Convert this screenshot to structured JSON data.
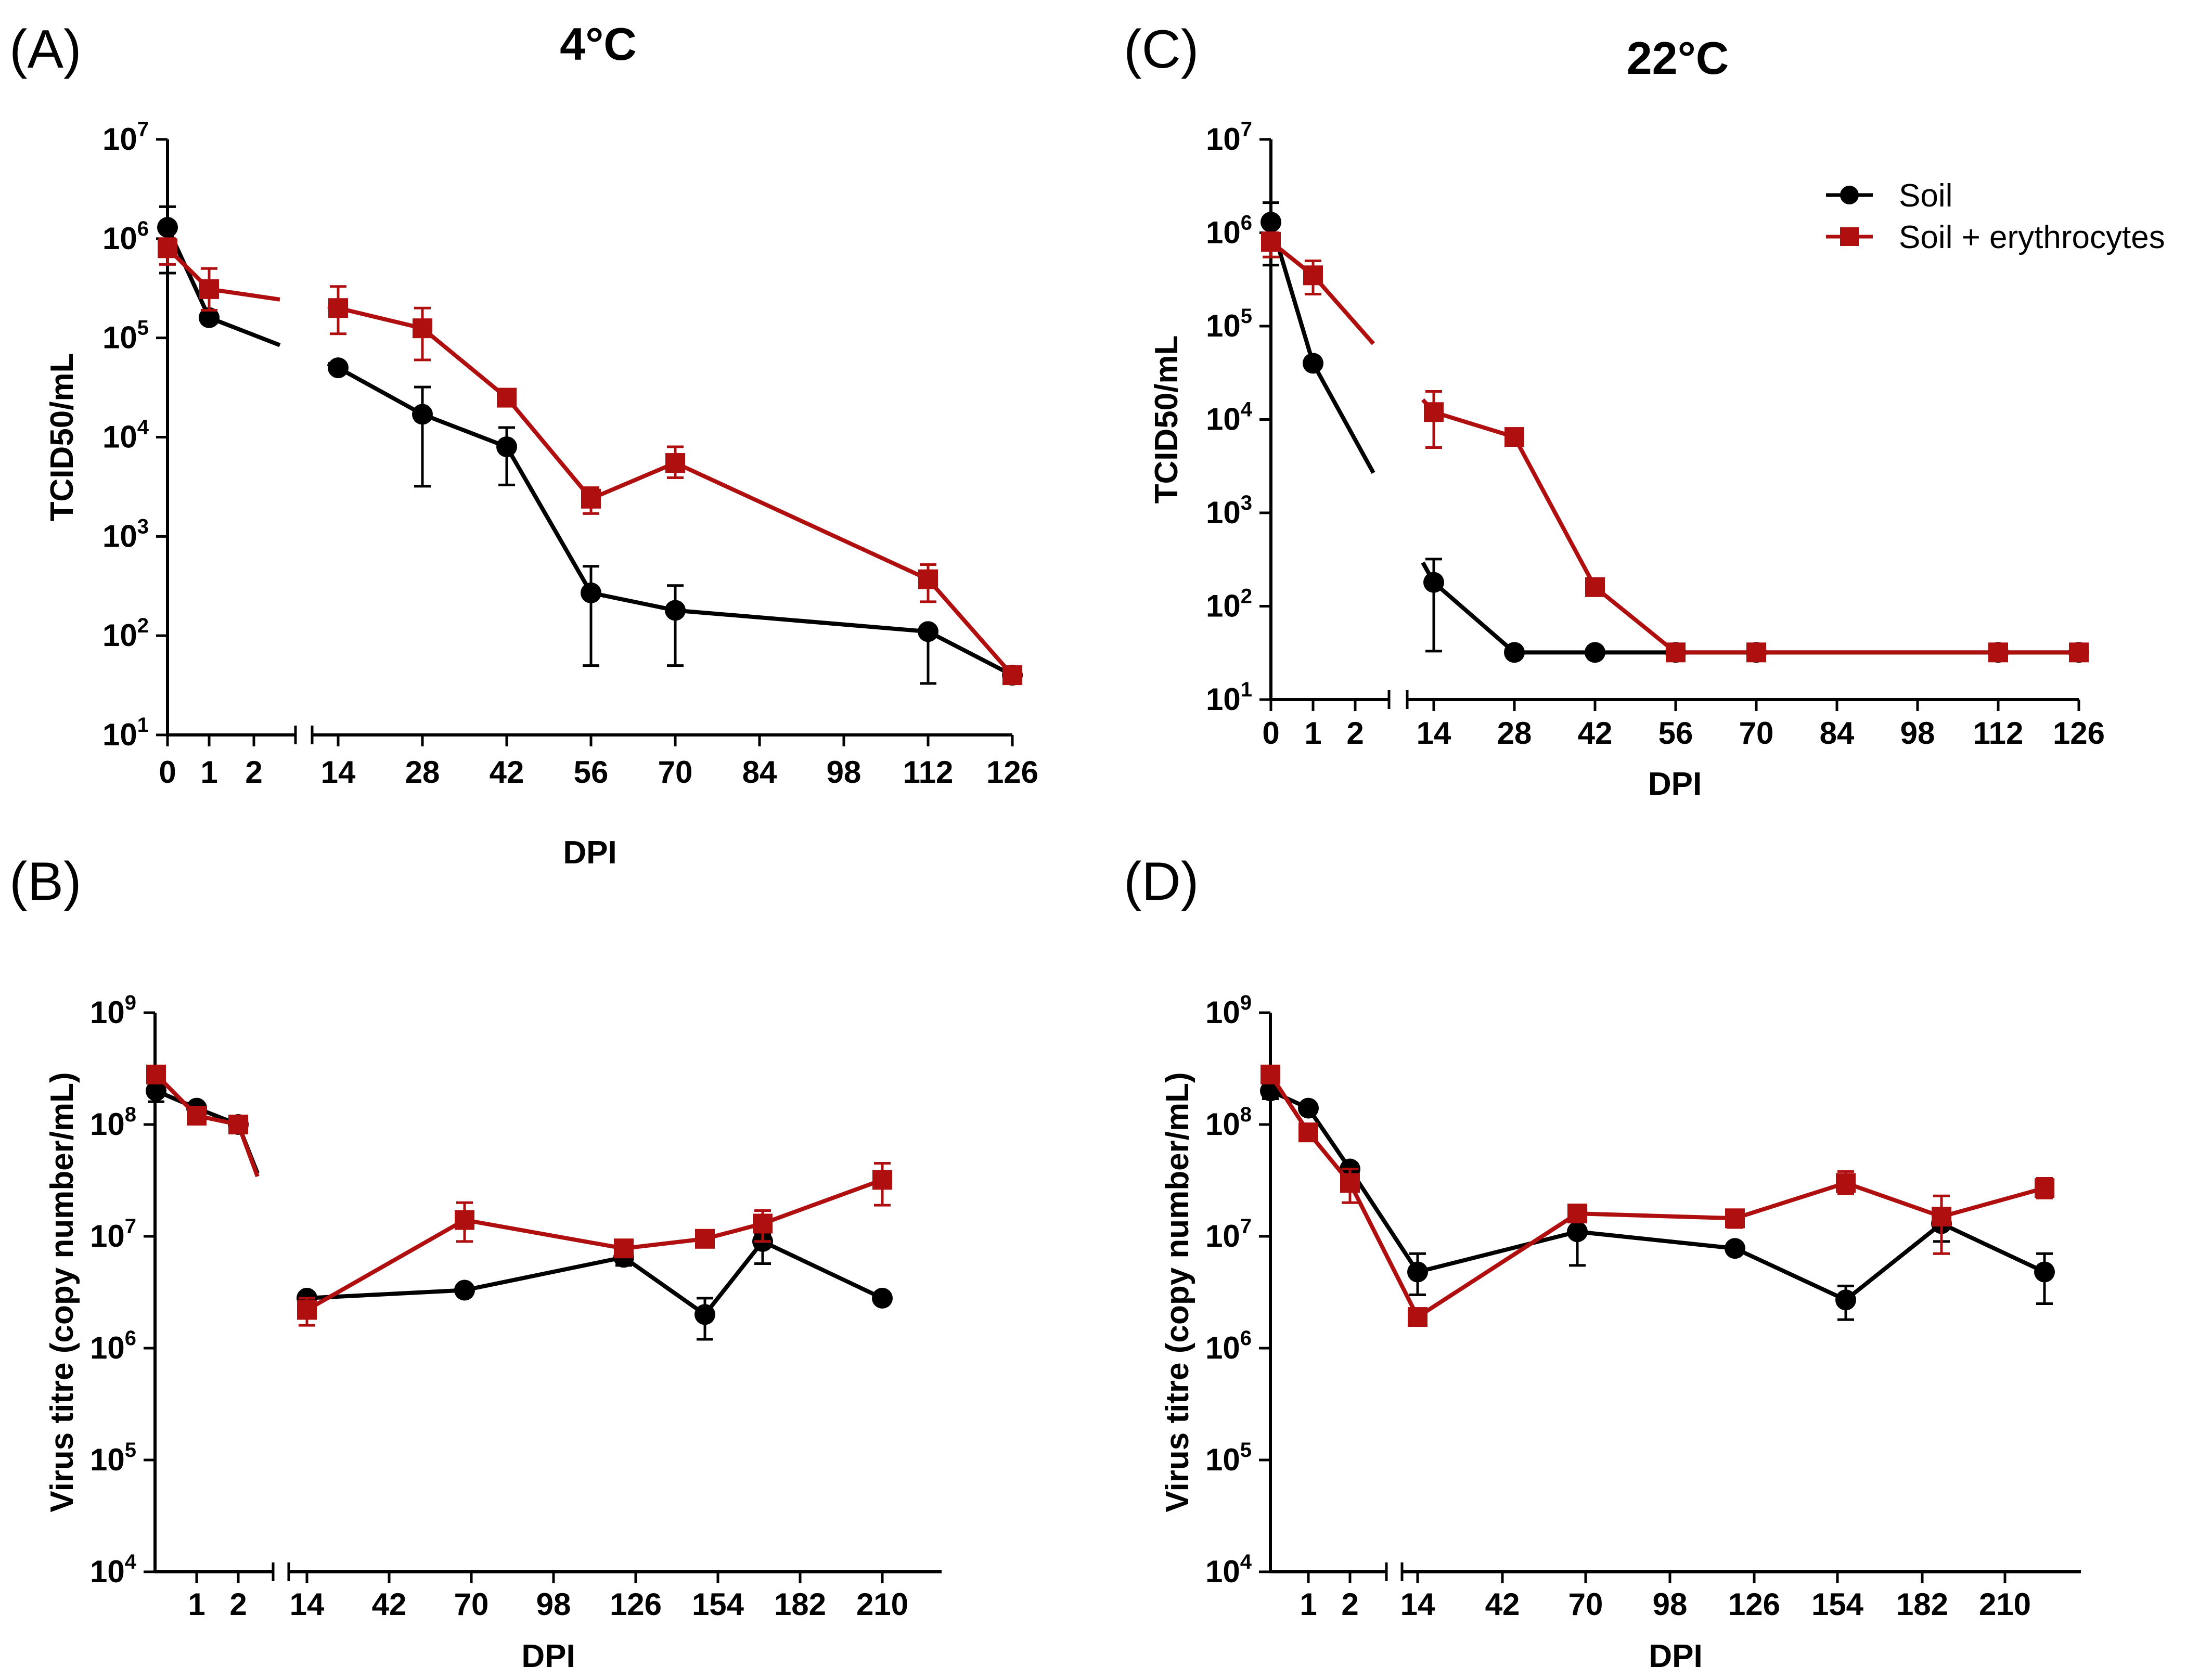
{
  "colors": {
    "soil": "#000000",
    "erythrocytes": "#b00f10"
  },
  "legend": {
    "items": [
      {
        "label": "Soil",
        "color": "#000000",
        "marker": "circle"
      },
      {
        "label": "Soil + erythrocytes",
        "color": "#b00f10",
        "marker": "square"
      }
    ]
  },
  "panels": [
    {
      "label": "(A)",
      "title": "4°C"
    },
    {
      "label": "(B)",
      "title": ""
    },
    {
      "label": "(C)",
      "title": "22°C"
    },
    {
      "label": "(D)",
      "title": ""
    }
  ],
  "chart_data": [
    {
      "panel": "(A)",
      "type": "line",
      "title": "4°C",
      "xlabel": "DPI",
      "ylabel": "TCID50/mL",
      "yscale": "log",
      "ylim": [
        10,
        10000000
      ],
      "ytick_exponents": [
        1,
        2,
        3,
        4,
        5,
        6,
        7
      ],
      "x_ticks": [
        "0",
        "1",
        "2",
        "14",
        "28",
        "42",
        "56",
        "70",
        "84",
        "98",
        "112",
        "126"
      ],
      "x_axis_break": "between 2 and 14",
      "series": [
        {
          "name": "Soil",
          "color": "#000000",
          "marker": "circle",
          "x": [
            0,
            1,
            14,
            28,
            42,
            56,
            70,
            112,
            126
          ],
          "values": [
            1300000,
            160000,
            50000,
            17000,
            8000,
            270,
            180,
            110,
            40
          ],
          "error_low": [
            450000,
            140000,
            50000,
            3200,
            3300,
            50,
            50,
            33,
            40
          ],
          "error_high": [
            2100000,
            160000,
            50000,
            32000,
            12500,
            500,
            320,
            110,
            40
          ]
        },
        {
          "name": "Soil + erythrocytes",
          "color": "#b00f10",
          "marker": "square",
          "x": [
            0,
            1,
            14,
            28,
            42,
            56,
            70,
            112,
            126
          ],
          "values": [
            800000,
            310000,
            200000,
            125000,
            25000,
            2400,
            5500,
            370,
            40
          ],
          "error_low": [
            550000,
            190000,
            110000,
            60000,
            22000,
            1700,
            3900,
            220,
            40
          ],
          "error_high": [
            1000000,
            500000,
            330000,
            200000,
            28000,
            3100,
            8000,
            520,
            40
          ]
        }
      ]
    },
    {
      "panel": "(B)",
      "type": "line",
      "title": "",
      "xlabel": "DPI",
      "ylabel": "Virus titre (copy number/mL)",
      "yscale": "log",
      "ylim": [
        10000,
        1000000000
      ],
      "ytick_exponents": [
        4,
        5,
        6,
        7,
        8,
        9
      ],
      "x_ticks": [
        "1",
        "2",
        "14",
        "42",
        "70",
        "98",
        "126",
        "154",
        "182",
        "210"
      ],
      "x_axis_break": "between 2 and 14",
      "series": [
        {
          "name": "Soil",
          "color": "#000000",
          "marker": "circle",
          "x": [
            0,
            1,
            2,
            14,
            56,
            112,
            147,
            175,
            210
          ],
          "values": [
            200000000,
            140000000,
            100000000,
            2800000,
            3300000,
            6500000,
            2000000,
            9000000,
            2800000
          ],
          "error_low": [
            160000000,
            130000000,
            95000000,
            2500000,
            3200000,
            5500000,
            1200000,
            5700000,
            2700000
          ],
          "error_high": [
            240000000,
            150000000,
            110000000,
            3000000,
            3500000,
            7500000,
            2800000,
            10500000,
            2900000
          ]
        },
        {
          "name": "Soil + erythrocytes",
          "color": "#b00f10",
          "marker": "square",
          "x": [
            0,
            1,
            2,
            14,
            56,
            112,
            147,
            175,
            210
          ],
          "values": [
            280000000,
            120000000,
            100000000,
            2200000,
            14000000,
            7800000,
            9500000,
            13000000,
            32000000
          ],
          "error_low": [
            250000000,
            110000000,
            95000000,
            1600000,
            9000000,
            7000000,
            8500000,
            9000000,
            19000000
          ],
          "error_high": [
            310000000,
            130000000,
            110000000,
            2800000,
            20000000,
            8600000,
            10500000,
            17000000,
            45000000
          ]
        }
      ]
    },
    {
      "panel": "(C)",
      "type": "line",
      "title": "22°C",
      "xlabel": "DPI",
      "ylabel": "TCID50/mL",
      "yscale": "log",
      "ylim": [
        10,
        10000000
      ],
      "ytick_exponents": [
        1,
        2,
        3,
        4,
        5,
        6,
        7
      ],
      "x_ticks": [
        "0",
        "1",
        "2",
        "14",
        "28",
        "42",
        "56",
        "70",
        "84",
        "98",
        "112",
        "126"
      ],
      "x_axis_break": "between 2 and 14",
      "series": [
        {
          "name": "Soil",
          "color": "#000000",
          "marker": "circle",
          "x": [
            0,
            1,
            14,
            28,
            42,
            56,
            70,
            112,
            126
          ],
          "values": [
            1300000,
            40000,
            180,
            32,
            32,
            32,
            32,
            32,
            32
          ],
          "error_low": [
            450000,
            35000,
            33,
            32,
            32,
            32,
            32,
            32,
            32
          ],
          "error_high": [
            2100000,
            45000,
            320,
            32,
            32,
            32,
            32,
            32,
            32
          ]
        },
        {
          "name": "Soil + erythrocytes",
          "color": "#b00f10",
          "marker": "square",
          "x": [
            0,
            1,
            14,
            28,
            42,
            56,
            70,
            112,
            126
          ],
          "values": [
            800000,
            350000,
            12000,
            6500,
            160,
            32,
            32,
            32,
            32
          ],
          "error_low": [
            550000,
            220000,
            5000,
            5800,
            140,
            32,
            32,
            32,
            32
          ],
          "error_high": [
            1000000,
            500000,
            20000,
            7200,
            180,
            32,
            32,
            32,
            32
          ]
        }
      ]
    },
    {
      "panel": "(D)",
      "type": "line",
      "title": "",
      "xlabel": "DPI",
      "ylabel": "Virus titre (copy number/mL)",
      "yscale": "log",
      "ylim": [
        10000,
        1000000000
      ],
      "ytick_exponents": [
        4,
        5,
        6,
        7,
        8,
        9
      ],
      "x_ticks": [
        "1",
        "2",
        "14",
        "42",
        "70",
        "98",
        "126",
        "154",
        "182",
        "210"
      ],
      "x_axis_break": "between 2 and 14",
      "series": [
        {
          "name": "Soil",
          "color": "#000000",
          "marker": "circle",
          "x": [
            0,
            1,
            2,
            14,
            63,
            112,
            147,
            175,
            210
          ],
          "values": [
            200000000,
            140000000,
            40000000,
            4800000,
            11000000,
            7800000,
            2700000,
            13000000,
            4800000
          ],
          "error_low": [
            170000000,
            130000000,
            37000000,
            3000000,
            5500000,
            7000000,
            1800000,
            9000000,
            2500000
          ],
          "error_high": [
            230000000,
            150000000,
            43000000,
            7000000,
            16000000,
            8600000,
            3600000,
            17000000,
            7000000
          ]
        },
        {
          "name": "Soil + erythrocytes",
          "color": "#b00f10",
          "marker": "square",
          "x": [
            0,
            1,
            2,
            14,
            63,
            112,
            147,
            175,
            210
          ],
          "values": [
            280000000,
            85000000,
            30000000,
            1900000,
            16000000,
            14500000,
            30000000,
            15000000,
            27000000
          ],
          "error_low": [
            250000000,
            75000000,
            20000000,
            1800000,
            14000000,
            12000000,
            24000000,
            7000000,
            22000000
          ],
          "error_high": [
            310000000,
            95000000,
            40000000,
            2000000,
            18000000,
            17000000,
            38000000,
            23000000,
            33000000
          ]
        }
      ]
    }
  ]
}
